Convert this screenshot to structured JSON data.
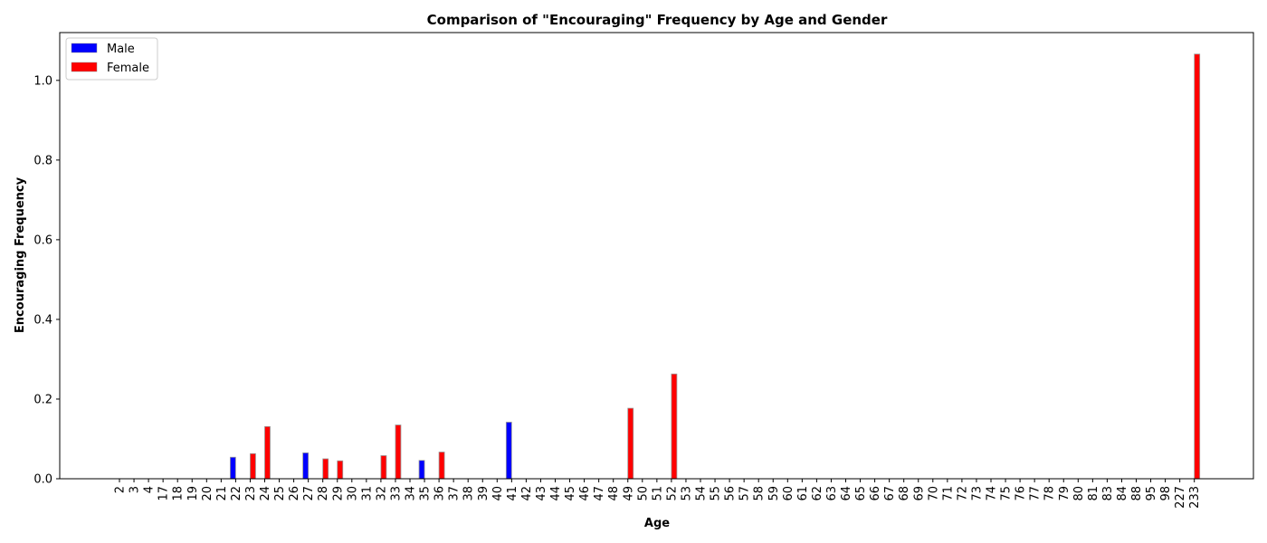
{
  "chart_data": {
    "type": "bar",
    "title": "Comparison of \"Encouraging\" Frequency by Age and Gender",
    "xlabel": "Age",
    "ylabel": "Encouraging Frequency",
    "ylim": [
      0,
      1.12
    ],
    "yticks": [
      0.0,
      0.2,
      0.4,
      0.6,
      0.8,
      1.0
    ],
    "ytick_labels": [
      "0.0",
      "0.2",
      "0.4",
      "0.6",
      "0.8",
      "1.0"
    ],
    "grid": false,
    "legend_position": "top-left",
    "categories": [
      "2",
      "3",
      "4",
      "17",
      "18",
      "19",
      "20",
      "21",
      "22",
      "23",
      "24",
      "25",
      "26",
      "27",
      "28",
      "29",
      "30",
      "31",
      "32",
      "33",
      "34",
      "35",
      "36",
      "37",
      "38",
      "39",
      "40",
      "41",
      "42",
      "43",
      "44",
      "45",
      "46",
      "47",
      "48",
      "49",
      "50",
      "51",
      "52",
      "53",
      "54",
      "55",
      "56",
      "57",
      "58",
      "59",
      "60",
      "61",
      "62",
      "63",
      "64",
      "65",
      "66",
      "67",
      "68",
      "69",
      "70",
      "71",
      "72",
      "73",
      "74",
      "75",
      "76",
      "77",
      "78",
      "79",
      "80",
      "81",
      "83",
      "84",
      "88",
      "95",
      "98",
      "227",
      "233"
    ],
    "series": [
      {
        "name": "Male",
        "color": "#0000ff",
        "values": [
          0,
          0,
          0,
          0,
          0,
          0,
          0,
          0,
          0.054,
          0,
          0,
          0,
          0,
          0.065,
          0,
          0,
          0,
          0,
          0,
          0,
          0,
          0.046,
          0,
          0,
          0,
          0,
          0,
          0.142,
          0,
          0,
          0,
          0,
          0,
          0,
          0,
          0,
          0,
          0,
          0,
          0,
          0,
          0,
          0,
          0,
          0,
          0,
          0,
          0,
          0,
          0,
          0,
          0,
          0,
          0,
          0,
          0,
          0,
          0,
          0,
          0,
          0,
          0,
          0,
          0,
          0,
          0,
          0,
          0,
          0,
          0,
          0,
          0,
          0,
          0,
          0
        ]
      },
      {
        "name": "Female",
        "color": "#ff0000",
        "values": [
          0,
          0,
          0,
          0,
          0,
          0,
          0,
          0,
          0,
          0.063,
          0.131,
          0,
          0,
          0,
          0.05,
          0.045,
          0,
          0,
          0.058,
          0.135,
          0,
          0,
          0.067,
          0,
          0,
          0,
          0,
          0,
          0,
          0,
          0,
          0,
          0,
          0,
          0,
          0.177,
          0,
          0,
          0.263,
          0,
          0,
          0,
          0,
          0,
          0,
          0,
          0,
          0,
          0,
          0,
          0,
          0,
          0,
          0,
          0,
          0,
          0,
          0,
          0,
          0,
          0,
          0,
          0,
          0,
          0,
          0,
          0,
          0,
          0,
          0,
          0,
          0,
          0,
          0,
          1.066
        ]
      }
    ]
  }
}
